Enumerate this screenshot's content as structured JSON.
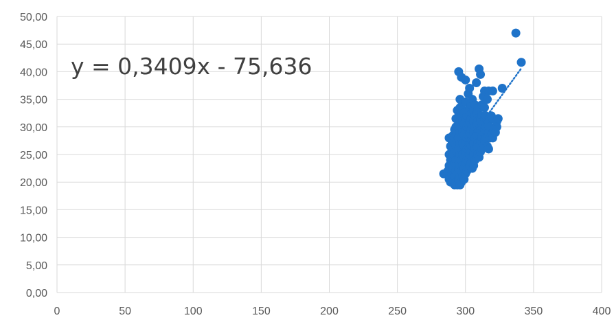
{
  "chart_data": {
    "type": "scatter",
    "title": "",
    "xlabel": "",
    "ylabel": "",
    "xlim": [
      0,
      400
    ],
    "ylim": [
      0,
      50
    ],
    "x_ticks": [
      "0",
      "50",
      "100",
      "150",
      "200",
      "250",
      "300",
      "350",
      "400"
    ],
    "y_ticks": [
      "0,00",
      "5,00",
      "10,00",
      "15,00",
      "20,00",
      "25,00",
      "30,00",
      "35,00",
      "40,00",
      "45,00",
      "50,00"
    ],
    "grid": "vertical-and-horizontal",
    "marker_color": "#1f73c9",
    "trendline": {
      "type": "linear",
      "slope": 0.3409,
      "intercept": -75.636,
      "equation": "y = 0,3409x - 75,636",
      "x_range": [
        300,
        341
      ],
      "style": "dotted",
      "color": "#1f73c9"
    },
    "series": [
      {
        "points": [
          [
            284,
            21.5
          ],
          [
            287,
            22.0
          ],
          [
            288,
            20.5
          ],
          [
            288,
            23.0
          ],
          [
            288,
            25.0
          ],
          [
            288,
            28.0
          ],
          [
            289,
            24.0
          ],
          [
            289,
            26.5
          ],
          [
            289,
            20.0
          ],
          [
            290,
            21.5
          ],
          [
            290,
            23.0
          ],
          [
            290,
            24.5
          ],
          [
            290,
            26.0
          ],
          [
            290,
            27.5
          ],
          [
            291,
            20.0
          ],
          [
            291,
            22.5
          ],
          [
            291,
            25.0
          ],
          [
            291,
            28.5
          ],
          [
            292,
            19.5
          ],
          [
            292,
            21.0
          ],
          [
            292,
            23.5
          ],
          [
            292,
            26.0
          ],
          [
            292,
            28.0
          ],
          [
            292,
            29.5
          ],
          [
            293,
            20.0
          ],
          [
            293,
            22.0
          ],
          [
            293,
            24.0
          ],
          [
            293,
            26.5
          ],
          [
            293,
            30.0
          ],
          [
            293,
            31.5
          ],
          [
            294,
            19.5
          ],
          [
            294,
            21.5
          ],
          [
            294,
            23.0
          ],
          [
            294,
            25.5
          ],
          [
            294,
            27.5
          ],
          [
            294,
            29.0
          ],
          [
            294,
            33.0
          ],
          [
            295,
            20.5
          ],
          [
            295,
            22.5
          ],
          [
            295,
            24.5
          ],
          [
            295,
            26.0
          ],
          [
            295,
            28.0
          ],
          [
            295,
            30.5
          ],
          [
            295,
            32.0
          ],
          [
            295,
            40.0
          ],
          [
            296,
            19.5
          ],
          [
            296,
            21.0
          ],
          [
            296,
            23.0
          ],
          [
            296,
            25.0
          ],
          [
            296,
            27.0
          ],
          [
            296,
            29.0
          ],
          [
            296,
            31.0
          ],
          [
            296,
            33.5
          ],
          [
            296,
            35.0
          ],
          [
            297,
            20.0
          ],
          [
            297,
            22.0
          ],
          [
            297,
            24.0
          ],
          [
            297,
            26.0
          ],
          [
            297,
            28.0
          ],
          [
            297,
            30.0
          ],
          [
            297,
            32.0
          ],
          [
            297,
            39.0
          ],
          [
            298,
            21.0
          ],
          [
            298,
            23.0
          ],
          [
            298,
            25.0
          ],
          [
            298,
            27.0
          ],
          [
            298,
            29.0
          ],
          [
            298,
            31.0
          ],
          [
            298,
            33.0
          ],
          [
            299,
            20.5
          ],
          [
            299,
            22.5
          ],
          [
            299,
            24.5
          ],
          [
            299,
            26.5
          ],
          [
            299,
            28.5
          ],
          [
            299,
            30.5
          ],
          [
            299,
            32.5
          ],
          [
            300,
            21.5
          ],
          [
            300,
            23.5
          ],
          [
            300,
            25.5
          ],
          [
            300,
            27.5
          ],
          [
            300,
            29.5
          ],
          [
            300,
            31.5
          ],
          [
            300,
            34.5
          ],
          [
            300,
            38.5
          ],
          [
            301,
            22.0
          ],
          [
            301,
            24.0
          ],
          [
            301,
            26.0
          ],
          [
            301,
            28.0
          ],
          [
            301,
            30.0
          ],
          [
            301,
            32.0
          ],
          [
            302,
            22.5
          ],
          [
            302,
            24.5
          ],
          [
            302,
            26.5
          ],
          [
            302,
            28.5
          ],
          [
            302,
            30.5
          ],
          [
            302,
            33.0
          ],
          [
            302,
            36.0
          ],
          [
            303,
            23.0
          ],
          [
            303,
            25.0
          ],
          [
            303,
            27.0
          ],
          [
            303,
            29.0
          ],
          [
            303,
            31.0
          ],
          [
            303,
            33.5
          ],
          [
            303,
            37.0
          ],
          [
            304,
            23.5
          ],
          [
            304,
            25.5
          ],
          [
            304,
            27.5
          ],
          [
            304,
            29.5
          ],
          [
            304,
            31.5
          ],
          [
            304,
            34.0
          ],
          [
            305,
            22.5
          ],
          [
            305,
            24.5
          ],
          [
            305,
            26.5
          ],
          [
            305,
            28.5
          ],
          [
            305,
            30.5
          ],
          [
            305,
            32.5
          ],
          [
            305,
            35.0
          ],
          [
            306,
            23.0
          ],
          [
            306,
            25.0
          ],
          [
            306,
            27.0
          ],
          [
            306,
            29.0
          ],
          [
            306,
            31.0
          ],
          [
            306,
            33.0
          ],
          [
            307,
            24.0
          ],
          [
            307,
            26.0
          ],
          [
            307,
            28.0
          ],
          [
            307,
            30.0
          ],
          [
            307,
            32.0
          ],
          [
            307,
            34.0
          ],
          [
            308,
            24.5
          ],
          [
            308,
            26.5
          ],
          [
            308,
            28.5
          ],
          [
            308,
            30.5
          ],
          [
            308,
            32.5
          ],
          [
            308,
            38.0
          ],
          [
            309,
            25.0
          ],
          [
            309,
            27.0
          ],
          [
            309,
            29.0
          ],
          [
            309,
            31.0
          ],
          [
            309,
            33.0
          ],
          [
            310,
            24.5
          ],
          [
            310,
            26.5
          ],
          [
            310,
            28.5
          ],
          [
            310,
            30.5
          ],
          [
            310,
            33.5
          ],
          [
            310,
            40.5
          ],
          [
            311,
            25.5
          ],
          [
            311,
            27.5
          ],
          [
            311,
            29.5
          ],
          [
            311,
            31.5
          ],
          [
            311,
            39.5
          ],
          [
            312,
            26.0
          ],
          [
            312,
            28.0
          ],
          [
            312,
            30.0
          ],
          [
            312,
            32.0
          ],
          [
            312,
            34.0
          ],
          [
            313,
            27.0
          ],
          [
            313,
            29.0
          ],
          [
            313,
            31.0
          ],
          [
            313,
            35.5
          ],
          [
            314,
            27.5
          ],
          [
            314,
            29.5
          ],
          [
            314,
            31.5
          ],
          [
            314,
            33.5
          ],
          [
            314,
            36.5
          ],
          [
            315,
            28.0
          ],
          [
            315,
            30.0
          ],
          [
            315,
            32.0
          ],
          [
            316,
            26.5
          ],
          [
            316,
            28.5
          ],
          [
            316,
            30.5
          ],
          [
            316,
            35.0
          ],
          [
            317,
            26.0
          ],
          [
            317,
            29.0
          ],
          [
            317,
            31.0
          ],
          [
            317,
            36.5
          ],
          [
            318,
            28.0
          ],
          [
            318,
            30.0
          ],
          [
            319,
            28.5
          ],
          [
            319,
            32.0
          ],
          [
            320,
            28.0
          ],
          [
            320,
            31.5
          ],
          [
            320,
            36.5
          ],
          [
            321,
            29.5
          ],
          [
            322,
            29.0
          ],
          [
            323,
            30.0
          ],
          [
            323,
            31.0
          ],
          [
            324,
            31.5
          ],
          [
            327,
            37.0
          ],
          [
            337,
            47.0
          ],
          [
            341,
            41.7
          ]
        ]
      }
    ]
  }
}
